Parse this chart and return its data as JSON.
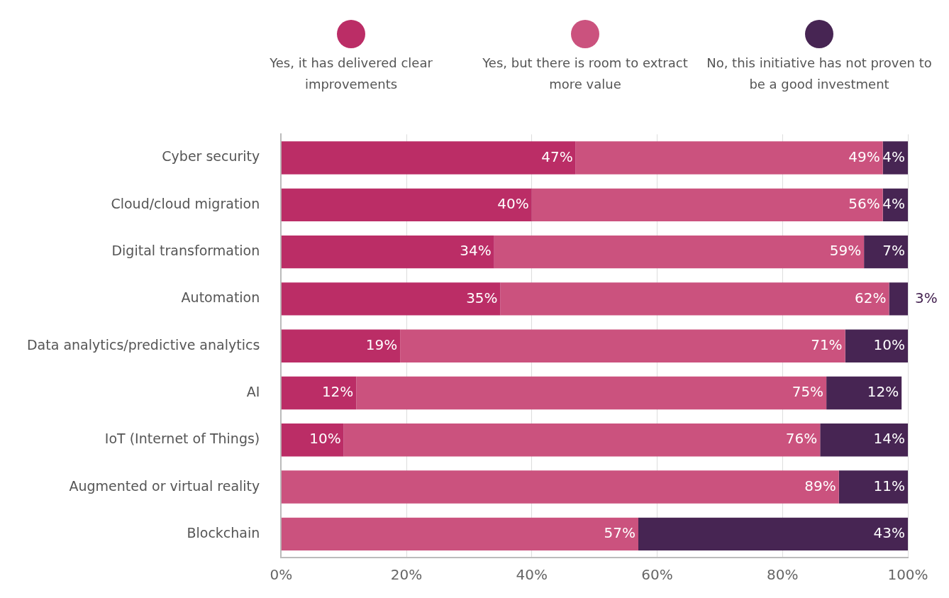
{
  "chart_data": {
    "type": "bar",
    "orientation": "horizontal",
    "stacked": true,
    "categories": [
      "Cyber security",
      "Cloud/cloud migration",
      "Digital transformation",
      "Automation",
      "Data analytics/predictive analytics",
      "AI",
      "IoT (Internet of Things)",
      "Augmented or virtual reality",
      "Blockchain"
    ],
    "series": [
      {
        "name": "Yes, it has delivered clear improvements",
        "color": "#bb2d66",
        "values": [
          47,
          40,
          34,
          35,
          19,
          12,
          10,
          null,
          null
        ],
        "value_labels": [
          "47%",
          "40%",
          "34%",
          "35%",
          "19%",
          "12%",
          "10%",
          null,
          null
        ]
      },
      {
        "name": "Yes, but there is room to extract more value",
        "color": "#cb527e",
        "values": [
          49,
          56,
          59,
          62,
          71,
          75,
          76,
          89,
          57
        ],
        "value_labels": [
          "49%",
          "56%",
          "59%",
          "62%",
          "71%",
          "75%",
          "76%",
          "89%",
          "57%"
        ]
      },
      {
        "name": "No, this initiative has not proven to be a good investment",
        "color": "#472553",
        "values": [
          4,
          4,
          7,
          3,
          10,
          12,
          14,
          11,
          43
        ],
        "value_labels": [
          "4%",
          "4%",
          "7%",
          "3%",
          "10%",
          "12%",
          "14%",
          "11%",
          "43%"
        ]
      }
    ],
    "xlim": [
      0,
      100
    ],
    "xticks": [
      {
        "value": 0,
        "label": "0%"
      },
      {
        "value": 20,
        "label": "20%"
      },
      {
        "value": 40,
        "label": "40%"
      },
      {
        "value": 60,
        "label": "60%"
      },
      {
        "value": 80,
        "label": "80%"
      },
      {
        "value": 100,
        "label": "100%"
      }
    ],
    "grid": "x",
    "legend": "top"
  }
}
